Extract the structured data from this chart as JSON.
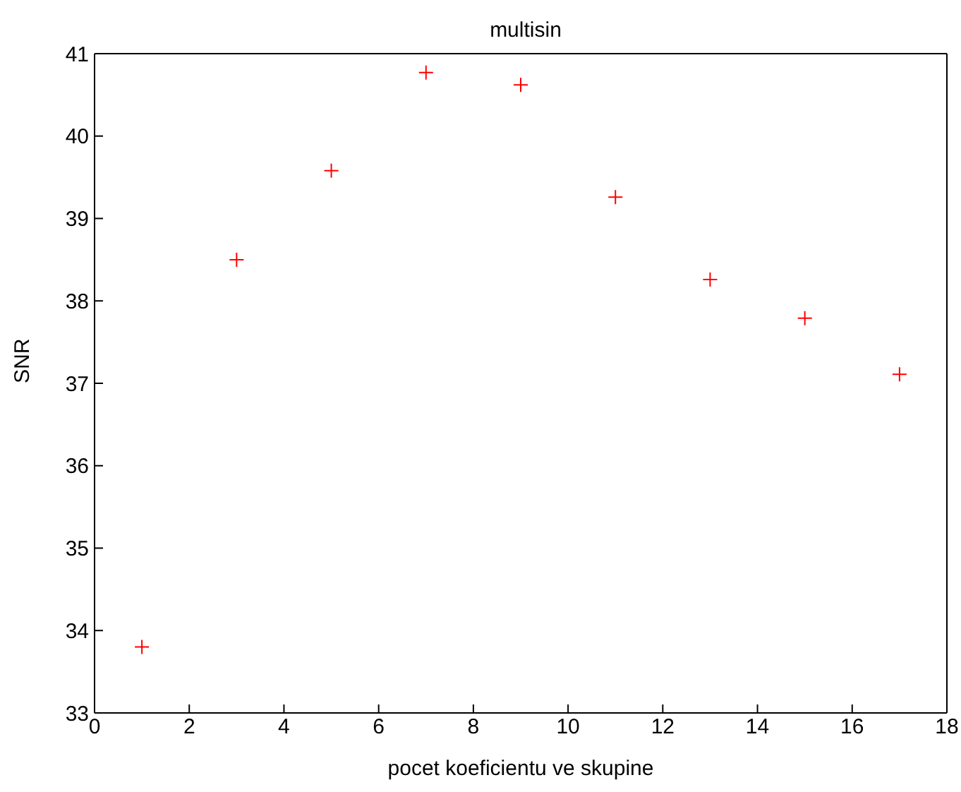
{
  "chart_data": {
    "type": "scatter",
    "title": "multisin",
    "xlabel": "pocet koeficientu ve skupine",
    "ylabel": "SNR",
    "x": [
      1,
      3,
      5,
      7,
      9,
      11,
      13,
      15,
      17
    ],
    "series": [
      {
        "color": "#ff0000",
        "values": [
          33.8,
          38.5,
          39.58,
          40.77,
          40.62,
          39.26,
          38.26,
          37.79,
          37.11
        ]
      }
    ],
    "xlim": [
      0,
      18
    ],
    "xticks": [
      0,
      2,
      4,
      6,
      8,
      10,
      12,
      14,
      16,
      18
    ],
    "ylim": [
      33,
      41
    ],
    "yticks": [
      33,
      34,
      35,
      36,
      37,
      38,
      39,
      40,
      41
    ],
    "marker": "cross",
    "legend": false
  }
}
